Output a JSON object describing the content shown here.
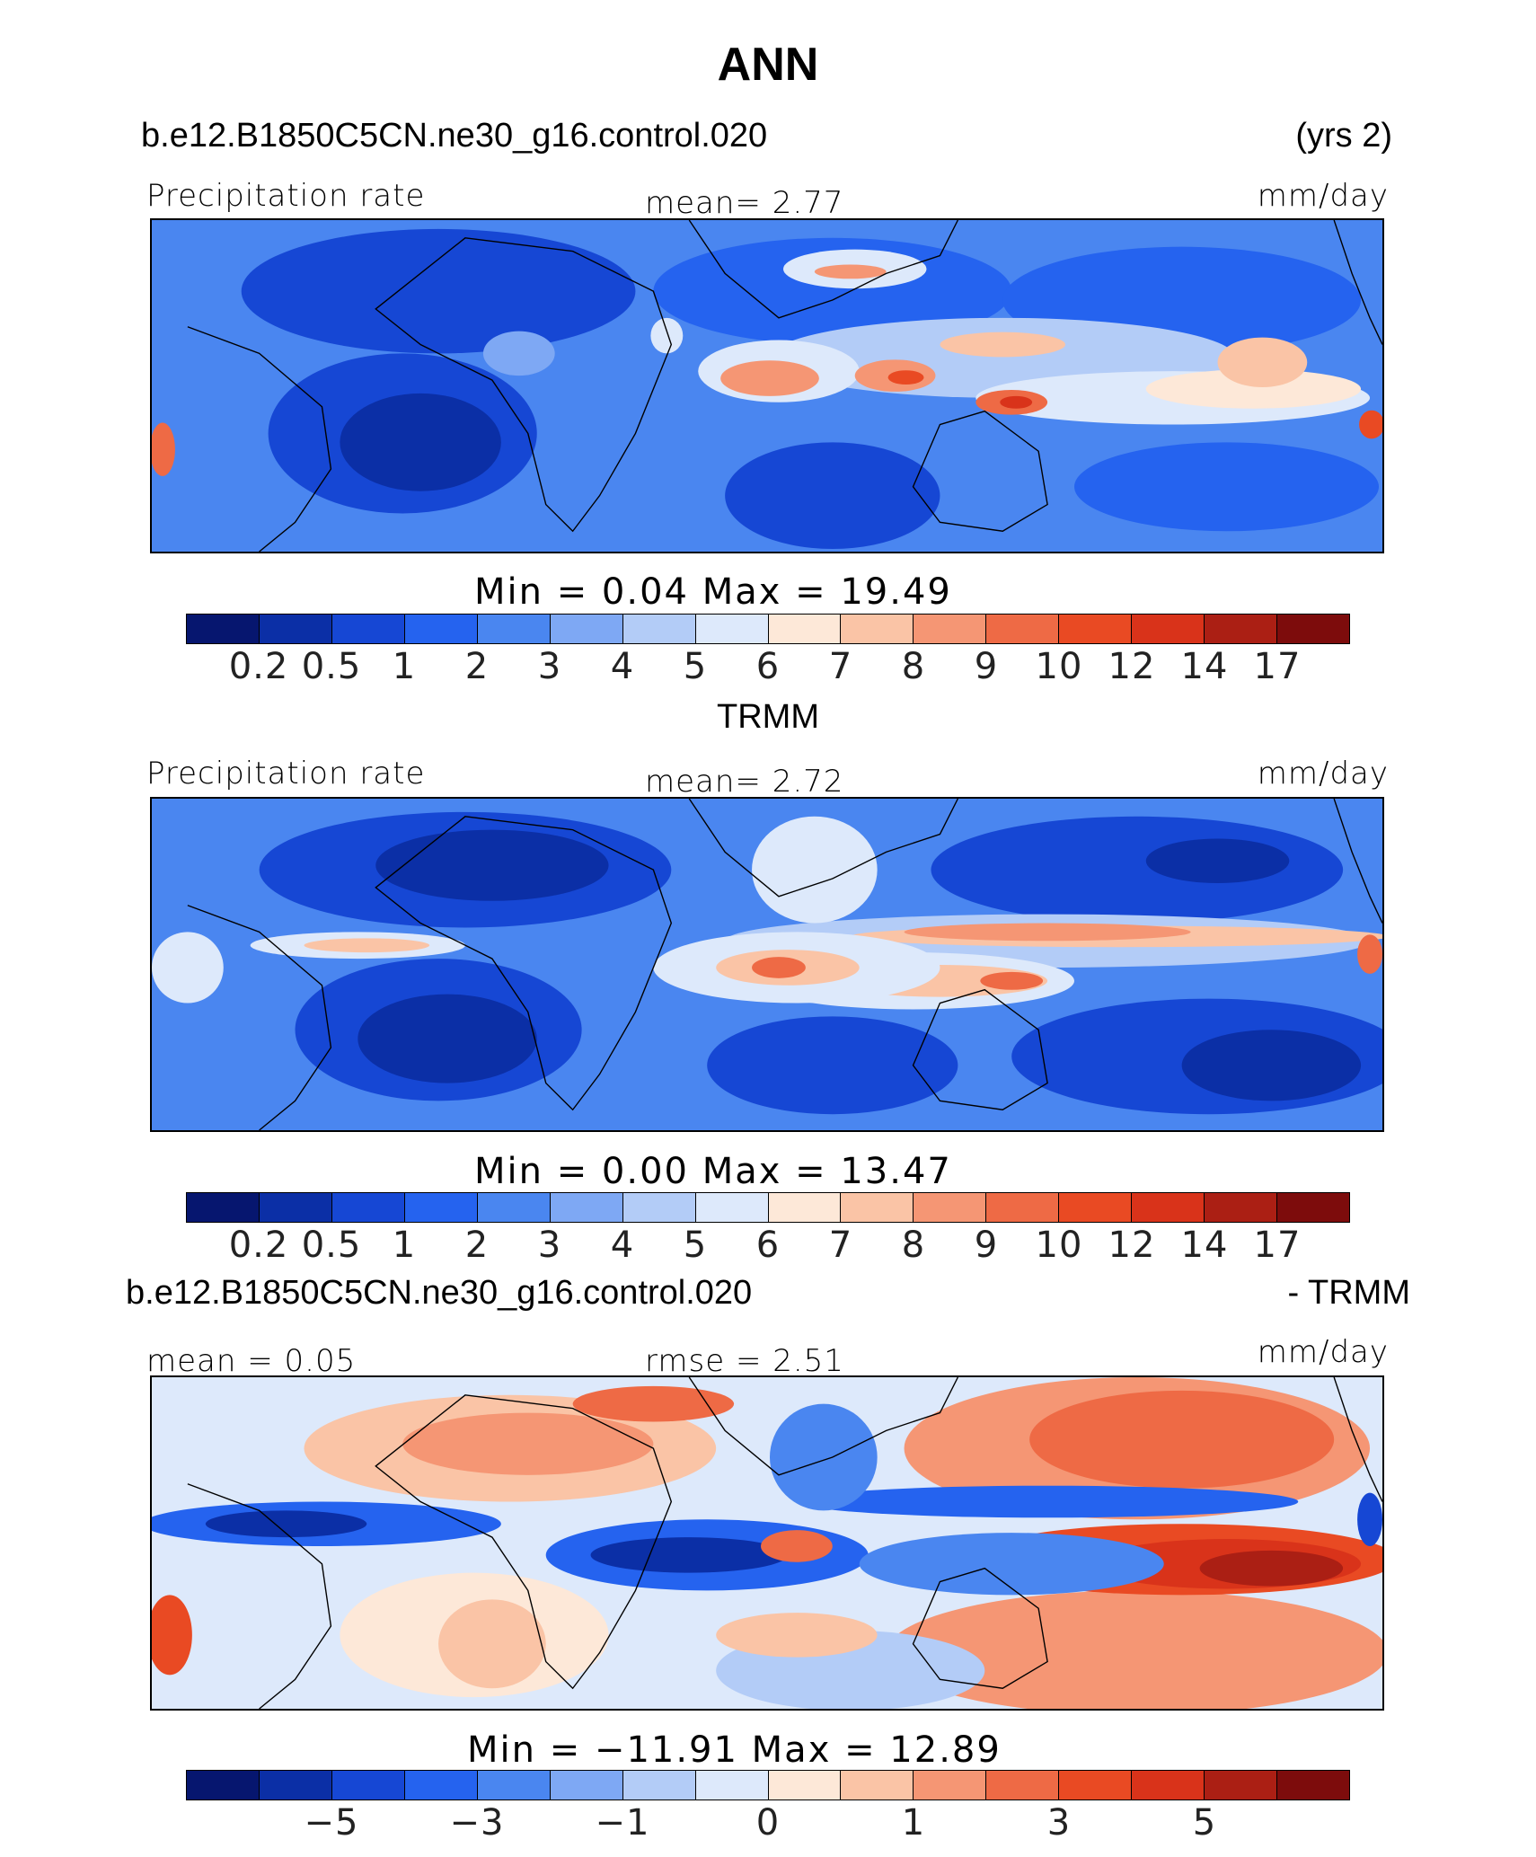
{
  "title": "ANN",
  "case_name": "b.e12.B1850C5CN.ne30_g16.control.020",
  "years": "(yrs 2)",
  "panels": [
    {
      "left_label": "Precipitation rate",
      "center_label": "mean=    2.77",
      "right_label": "mm/day",
      "stats": "Min  =     0.04  Max  =    19.49"
    },
    {
      "header": "TRMM",
      "left_label": "Precipitation rate",
      "center_label": "mean=    2.72",
      "right_label": "mm/day",
      "stats": "Min  =     0.00  Max  =    13.47"
    },
    {
      "header_left": "b.e12.B1850C5CN.ne30_g16.control.020",
      "header_right": "- TRMM",
      "left_label": "mean  =    0.05",
      "center_label": "rmse  =    2.51",
      "right_label": "mm/day",
      "stats": "Min  = −11.91  Max  =    12.89"
    }
  ],
  "colorbar_abs": {
    "colors": [
      "#06166f",
      "#0b2fa6",
      "#1647d4",
      "#2563ef",
      "#4a86f0",
      "#7ea8f4",
      "#b3ccf7",
      "#dde9fb",
      "#fde8d8",
      "#fac4a6",
      "#f59674",
      "#ee6a45",
      "#e94a23",
      "#d9331a",
      "#ab1f14",
      "#7d0c0c"
    ],
    "ticks": [
      "0.2",
      "0.5",
      "1",
      "2",
      "3",
      "4",
      "5",
      "6",
      "7",
      "8",
      "9",
      "10",
      "12",
      "14",
      "17"
    ]
  },
  "colorbar_diff": {
    "colors": [
      "#06166f",
      "#0b2fa6",
      "#1647d4",
      "#2563ef",
      "#4a86f0",
      "#7ea8f4",
      "#b3ccf7",
      "#dde9fb",
      "#fde8d8",
      "#fac4a6",
      "#f59674",
      "#ee6a45",
      "#e94a23",
      "#d9331a",
      "#ab1f14",
      "#7d0c0c"
    ],
    "ticks": [
      "−5",
      "−3",
      "−1",
      "0",
      "1",
      "3",
      "5"
    ],
    "tick_positions": [
      1,
      3,
      5,
      7,
      9,
      11,
      13
    ]
  }
}
